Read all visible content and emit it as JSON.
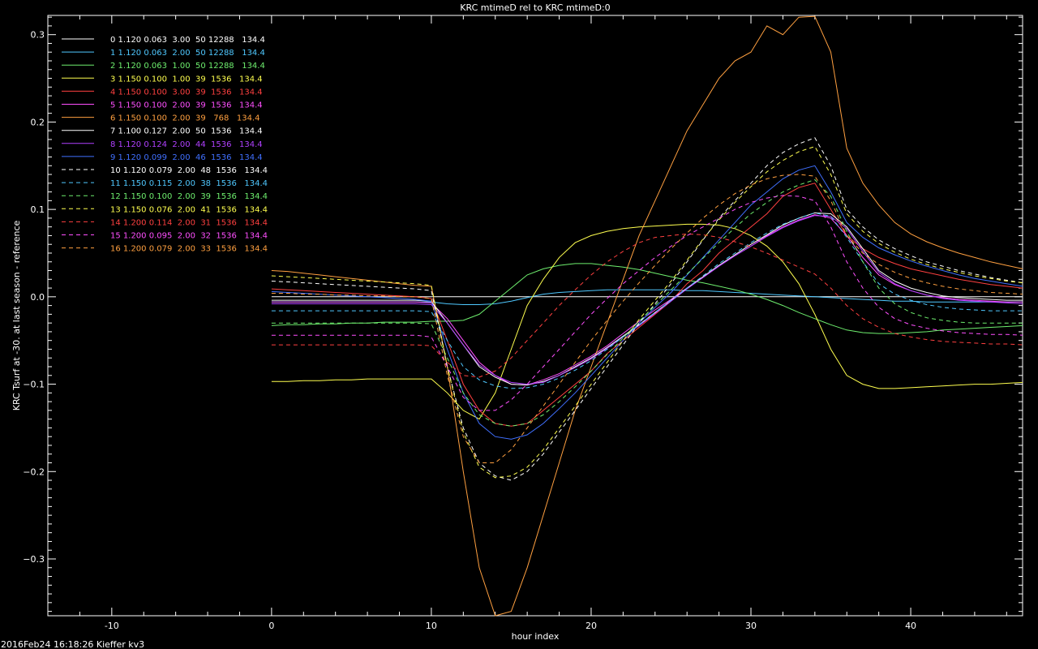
{
  "chart_data": {
    "type": "line",
    "title": "KRC  mtimeD rel to KRC mtimeD:0",
    "xlabel": "hour index",
    "ylabel": "KRC Tsurf at  -30. at last season  - reference",
    "footer": "2016Feb24 16:18:26 Kieffer kv3",
    "xlim": [
      -14,
      47
    ],
    "ylim": [
      -0.365,
      0.322
    ],
    "xticks": [
      -10,
      0,
      10,
      20,
      30,
      40
    ],
    "yticks": [
      -0.3,
      -0.2,
      -0.1,
      0.0,
      0.1,
      0.2,
      0.3
    ],
    "ytick_labels": [
      "−0.3",
      "−0.2",
      "−0.1",
      "0.0",
      "0.1",
      "0.2",
      "0.3"
    ],
    "grid": false,
    "legend_position": "top-left",
    "x": [
      0,
      1,
      2,
      3,
      4,
      5,
      6,
      7,
      8,
      9,
      10,
      11,
      12,
      13,
      14,
      15,
      16,
      17,
      18,
      19,
      20,
      21,
      22,
      23,
      24,
      25,
      26,
      27,
      28,
      29,
      30,
      31,
      32,
      33,
      34,
      35,
      36,
      37,
      38,
      39,
      40,
      41,
      42,
      43,
      44,
      45,
      46,
      47
    ],
    "series": [
      {
        "name": "0 1.120 0.063  3.00  50 12288   134.4",
        "color": "#ffffff",
        "dashed": false,
        "values": [
          0,
          0,
          0,
          0,
          0,
          0,
          0,
          0,
          0,
          0,
          0,
          0,
          0,
          0,
          0,
          0,
          0,
          0,
          0,
          0,
          0,
          0,
          0,
          0,
          0,
          0,
          0,
          0,
          0,
          0,
          0,
          0,
          0,
          0,
          0,
          0,
          0,
          0,
          0,
          0,
          0,
          0,
          0,
          0,
          0,
          0,
          0,
          0
        ]
      },
      {
        "name": "1 1.120 0.063  2.00  50 12288   134.4",
        "color": "#4fc8ff",
        "dashed": false,
        "values": [
          -0.006,
          -0.006,
          -0.006,
          -0.006,
          -0.006,
          -0.006,
          -0.006,
          -0.006,
          -0.006,
          -0.006,
          -0.006,
          -0.008,
          -0.009,
          -0.009,
          -0.008,
          -0.005,
          -0.001,
          0.003,
          0.005,
          0.006,
          0.007,
          0.008,
          0.008,
          0.008,
          0.008,
          0.008,
          0.007,
          0.007,
          0.006,
          0.005,
          0.004,
          0.003,
          0.002,
          0.001,
          0.0,
          -0.001,
          -0.002,
          -0.003,
          -0.004,
          -0.005,
          -0.005,
          -0.006,
          -0.006,
          -0.006,
          -0.006,
          -0.006,
          -0.006,
          -0.006
        ]
      },
      {
        "name": "2 1.120 0.063  1.00  50 12288   134.4",
        "color": "#6eee6e",
        "dashed": false,
        "values": [
          -0.033,
          -0.032,
          -0.032,
          -0.031,
          -0.031,
          -0.03,
          -0.03,
          -0.029,
          -0.029,
          -0.029,
          -0.028,
          -0.028,
          -0.027,
          -0.02,
          -0.005,
          0.01,
          0.025,
          0.032,
          0.036,
          0.038,
          0.038,
          0.036,
          0.034,
          0.031,
          0.027,
          0.023,
          0.019,
          0.016,
          0.012,
          0.008,
          0.003,
          -0.003,
          -0.01,
          -0.018,
          -0.025,
          -0.032,
          -0.038,
          -0.041,
          -0.042,
          -0.042,
          -0.041,
          -0.04,
          -0.038,
          -0.037,
          -0.036,
          -0.035,
          -0.034,
          -0.033
        ]
      },
      {
        "name": "3 1.150 0.100  1.00  39  1536   134.4",
        "color": "#ffff4f",
        "dashed": false,
        "values": [
          -0.097,
          -0.097,
          -0.096,
          -0.096,
          -0.095,
          -0.095,
          -0.094,
          -0.094,
          -0.094,
          -0.094,
          -0.094,
          -0.11,
          -0.13,
          -0.14,
          -0.11,
          -0.06,
          -0.01,
          0.02,
          0.045,
          0.062,
          0.07,
          0.075,
          0.078,
          0.08,
          0.081,
          0.082,
          0.083,
          0.083,
          0.082,
          0.078,
          0.07,
          0.058,
          0.04,
          0.015,
          -0.02,
          -0.06,
          -0.09,
          -0.1,
          -0.105,
          -0.105,
          -0.104,
          -0.103,
          -0.102,
          -0.101,
          -0.1,
          -0.1,
          -0.099,
          -0.098
        ]
      },
      {
        "name": "4 1.150 0.100  3.00  39  1536   134.4",
        "color": "#ff4040",
        "dashed": false,
        "values": [
          0.009,
          0.008,
          0.007,
          0.006,
          0.005,
          0.004,
          0.003,
          0.002,
          0.001,
          0.0,
          -0.002,
          -0.05,
          -0.1,
          -0.13,
          -0.145,
          -0.148,
          -0.145,
          -0.13,
          -0.115,
          -0.1,
          -0.085,
          -0.065,
          -0.05,
          -0.035,
          -0.02,
          -0.005,
          0.015,
          0.03,
          0.05,
          0.065,
          0.08,
          0.095,
          0.115,
          0.125,
          0.13,
          0.1,
          0.07,
          0.055,
          0.045,
          0.038,
          0.032,
          0.028,
          0.024,
          0.02,
          0.017,
          0.014,
          0.012,
          0.01
        ]
      },
      {
        "name": "5 1.150 0.100  2.00  39  1536   134.4",
        "color": "#ff4fff",
        "dashed": false,
        "values": [
          -0.006,
          -0.006,
          -0.006,
          -0.006,
          -0.006,
          -0.006,
          -0.006,
          -0.006,
          -0.006,
          -0.006,
          -0.007,
          -0.025,
          -0.05,
          -0.075,
          -0.09,
          -0.1,
          -0.101,
          -0.095,
          -0.088,
          -0.078,
          -0.068,
          -0.056,
          -0.042,
          -0.028,
          -0.015,
          -0.003,
          0.01,
          0.022,
          0.035,
          0.047,
          0.058,
          0.07,
          0.08,
          0.088,
          0.094,
          0.09,
          0.07,
          0.045,
          0.025,
          0.014,
          0.007,
          0.002,
          -0.001,
          -0.003,
          -0.004,
          -0.005,
          -0.006,
          -0.006
        ]
      },
      {
        "name": "6 1.150 0.100  2.00  39   768   134.4",
        "color": "#ffa040",
        "dashed": false,
        "values": [
          0.03,
          0.029,
          0.027,
          0.025,
          0.023,
          0.021,
          0.019,
          0.017,
          0.015,
          0.013,
          0.012,
          -0.08,
          -0.2,
          -0.31,
          -0.365,
          -0.36,
          -0.31,
          -0.25,
          -0.19,
          -0.13,
          -0.08,
          -0.03,
          0.02,
          0.07,
          0.11,
          0.15,
          0.19,
          0.22,
          0.25,
          0.27,
          0.28,
          0.31,
          0.3,
          0.32,
          0.321,
          0.28,
          0.17,
          0.13,
          0.105,
          0.085,
          0.072,
          0.063,
          0.056,
          0.05,
          0.045,
          0.04,
          0.036,
          0.032
        ]
      },
      {
        "name": "7 1.100 0.127  2.00  50  1536   134.4",
        "color": "#ffffff",
        "dashed": false,
        "values": [
          -0.004,
          -0.004,
          -0.004,
          -0.004,
          -0.004,
          -0.004,
          -0.004,
          -0.004,
          -0.004,
          -0.004,
          -0.005,
          -0.03,
          -0.055,
          -0.08,
          -0.092,
          -0.1,
          -0.101,
          -0.097,
          -0.09,
          -0.08,
          -0.07,
          -0.058,
          -0.045,
          -0.032,
          -0.018,
          -0.004,
          0.01,
          0.023,
          0.036,
          0.048,
          0.06,
          0.071,
          0.082,
          0.09,
          0.096,
          0.095,
          0.08,
          0.055,
          0.03,
          0.018,
          0.01,
          0.005,
          0.001,
          -0.001,
          -0.002,
          -0.003,
          -0.004,
          -0.004
        ]
      },
      {
        "name": "8 1.120 0.124  2.00  44  1536   134.4",
        "color": "#b040ff",
        "dashed": false,
        "values": [
          -0.008,
          -0.008,
          -0.008,
          -0.008,
          -0.008,
          -0.008,
          -0.008,
          -0.008,
          -0.008,
          -0.008,
          -0.009,
          -0.03,
          -0.055,
          -0.078,
          -0.09,
          -0.098,
          -0.1,
          -0.098,
          -0.09,
          -0.081,
          -0.071,
          -0.059,
          -0.046,
          -0.033,
          -0.019,
          -0.005,
          0.009,
          0.022,
          0.035,
          0.047,
          0.058,
          0.069,
          0.079,
          0.087,
          0.093,
          0.092,
          0.078,
          0.052,
          0.028,
          0.015,
          0.007,
          0.002,
          -0.002,
          -0.004,
          -0.005,
          -0.006,
          -0.007,
          -0.008
        ]
      },
      {
        "name": "9 1.120 0.099  2.00  46  1536   134.4",
        "color": "#4070ff",
        "dashed": false,
        "values": [
          0.006,
          0.005,
          0.004,
          0.003,
          0.002,
          0.001,
          0.0,
          -0.001,
          -0.002,
          -0.003,
          -0.005,
          -0.06,
          -0.11,
          -0.145,
          -0.16,
          -0.163,
          -0.158,
          -0.145,
          -0.128,
          -0.11,
          -0.09,
          -0.07,
          -0.05,
          -0.03,
          -0.012,
          0.005,
          0.025,
          0.045,
          0.065,
          0.085,
          0.105,
          0.12,
          0.135,
          0.145,
          0.15,
          0.12,
          0.085,
          0.068,
          0.056,
          0.048,
          0.041,
          0.035,
          0.03,
          0.025,
          0.021,
          0.018,
          0.015,
          0.012
        ]
      },
      {
        "name": "10 1.120 0.079  2.00  48  1536   134.4",
        "color": "#ffffff",
        "dashed": true,
        "values": [
          0.018,
          0.017,
          0.016,
          0.015,
          0.014,
          0.013,
          0.012,
          0.011,
          0.01,
          0.009,
          0.007,
          -0.08,
          -0.15,
          -0.19,
          -0.205,
          -0.21,
          -0.2,
          -0.18,
          -0.155,
          -0.13,
          -0.105,
          -0.08,
          -0.055,
          -0.03,
          -0.008,
          0.015,
          0.04,
          0.065,
          0.09,
          0.11,
          0.13,
          0.15,
          0.165,
          0.175,
          0.182,
          0.15,
          0.1,
          0.08,
          0.065,
          0.055,
          0.047,
          0.04,
          0.035,
          0.03,
          0.026,
          0.022,
          0.019,
          0.016
        ]
      },
      {
        "name": "11 1.150 0.115  2.00  38  1536   134.4",
        "color": "#4fc8ff",
        "dashed": true,
        "values": [
          -0.016,
          -0.016,
          -0.016,
          -0.016,
          -0.016,
          -0.016,
          -0.016,
          -0.016,
          -0.016,
          -0.016,
          -0.017,
          -0.05,
          -0.08,
          -0.095,
          -0.102,
          -0.105,
          -0.104,
          -0.1,
          -0.093,
          -0.084,
          -0.073,
          -0.06,
          -0.046,
          -0.032,
          -0.018,
          -0.004,
          0.01,
          0.024,
          0.038,
          0.05,
          0.062,
          0.073,
          0.083,
          0.09,
          0.096,
          0.092,
          0.068,
          0.04,
          0.015,
          0.003,
          -0.004,
          -0.009,
          -0.012,
          -0.014,
          -0.015,
          -0.016,
          -0.016,
          -0.016
        ]
      },
      {
        "name": "12 1.150 0.100  2.00  39  1536   134.4",
        "color": "#6eee6e",
        "dashed": true,
        "values": [
          -0.03,
          -0.03,
          -0.03,
          -0.03,
          -0.03,
          -0.03,
          -0.03,
          -0.03,
          -0.03,
          -0.03,
          -0.031,
          -0.07,
          -0.11,
          -0.135,
          -0.145,
          -0.148,
          -0.145,
          -0.135,
          -0.12,
          -0.103,
          -0.085,
          -0.066,
          -0.047,
          -0.028,
          -0.01,
          0.008,
          0.026,
          0.044,
          0.062,
          0.079,
          0.095,
          0.108,
          0.12,
          0.128,
          0.134,
          0.115,
          0.075,
          0.04,
          0.01,
          -0.008,
          -0.018,
          -0.024,
          -0.027,
          -0.029,
          -0.03,
          -0.03,
          -0.03,
          -0.03
        ]
      },
      {
        "name": "13 1.150 0.076  2.00  41  1536   134.4",
        "color": "#ffff4f",
        "dashed": true,
        "values": [
          0.024,
          0.023,
          0.022,
          0.021,
          0.02,
          0.019,
          0.018,
          0.017,
          0.016,
          0.015,
          0.013,
          -0.08,
          -0.155,
          -0.195,
          -0.207,
          -0.205,
          -0.195,
          -0.175,
          -0.15,
          -0.125,
          -0.1,
          -0.075,
          -0.05,
          -0.026,
          -0.004,
          0.018,
          0.042,
          0.066,
          0.088,
          0.108,
          0.126,
          0.143,
          0.156,
          0.166,
          0.172,
          0.14,
          0.095,
          0.075,
          0.061,
          0.051,
          0.043,
          0.037,
          0.032,
          0.028,
          0.024,
          0.021,
          0.018,
          0.016
        ]
      },
      {
        "name": "14 1.200 0.114  2.00  31  1536   134.4",
        "color": "#ff4040",
        "dashed": true,
        "values": [
          -0.055,
          -0.055,
          -0.055,
          -0.055,
          -0.055,
          -0.055,
          -0.055,
          -0.055,
          -0.055,
          -0.055,
          -0.056,
          -0.075,
          -0.09,
          -0.092,
          -0.085,
          -0.07,
          -0.05,
          -0.03,
          -0.01,
          0.008,
          0.025,
          0.04,
          0.052,
          0.062,
          0.068,
          0.07,
          0.072,
          0.071,
          0.068,
          0.063,
          0.057,
          0.05,
          0.042,
          0.034,
          0.026,
          0.01,
          -0.01,
          -0.025,
          -0.035,
          -0.042,
          -0.046,
          -0.049,
          -0.051,
          -0.052,
          -0.053,
          -0.054,
          -0.054,
          -0.055
        ]
      },
      {
        "name": "15 1.200 0.095  2.00  32  1536   134.4",
        "color": "#ff4fff",
        "dashed": true,
        "values": [
          -0.044,
          -0.044,
          -0.044,
          -0.044,
          -0.044,
          -0.044,
          -0.044,
          -0.044,
          -0.044,
          -0.044,
          -0.046,
          -0.08,
          -0.115,
          -0.13,
          -0.13,
          -0.118,
          -0.1,
          -0.08,
          -0.06,
          -0.04,
          -0.02,
          -0.002,
          0.015,
          0.03,
          0.045,
          0.058,
          0.07,
          0.08,
          0.09,
          0.1,
          0.108,
          0.113,
          0.116,
          0.115,
          0.11,
          0.08,
          0.04,
          0.01,
          -0.012,
          -0.025,
          -0.032,
          -0.036,
          -0.039,
          -0.041,
          -0.042,
          -0.043,
          -0.043,
          -0.044
        ]
      },
      {
        "name": "16 1.200 0.079  2.00  33  1536   134.4",
        "color": "#ffa040",
        "dashed": true,
        "values": [
          0.004,
          0.004,
          0.003,
          0.003,
          0.002,
          0.002,
          0.001,
          0.001,
          0.0,
          0.0,
          -0.002,
          -0.09,
          -0.16,
          -0.19,
          -0.19,
          -0.175,
          -0.15,
          -0.125,
          -0.1,
          -0.075,
          -0.05,
          -0.027,
          -0.005,
          0.016,
          0.036,
          0.055,
          0.073,
          0.09,
          0.105,
          0.118,
          0.128,
          0.135,
          0.139,
          0.14,
          0.138,
          0.11,
          0.07,
          0.05,
          0.037,
          0.028,
          0.021,
          0.016,
          0.012,
          0.009,
          0.007,
          0.005,
          0.004,
          0.003
        ]
      }
    ]
  }
}
